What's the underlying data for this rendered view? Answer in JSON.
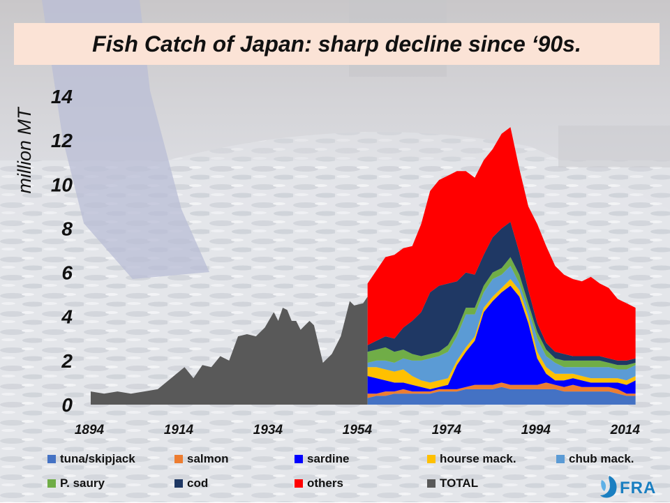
{
  "title": "Fish Catch of Japan: sharp decline since ‘90s.",
  "logo_text": "FRA",
  "chart_data": {
    "type": "area",
    "stacked": true,
    "ylabel": "million MT",
    "ylim": [
      0,
      14
    ],
    "yticks": [
      0,
      2,
      4,
      6,
      8,
      10,
      12,
      14
    ],
    "xlim": [
      1894,
      2017
    ],
    "xticks": [
      1894,
      1914,
      1934,
      1954,
      1974,
      1994,
      2014
    ],
    "grid": false,
    "legend_position": "bottom",
    "total": {
      "name": "TOTAL",
      "color": "#595959",
      "x": [
        1894,
        1897,
        1900,
        1903,
        1906,
        1909,
        1912,
        1915,
        1917,
        1919,
        1921,
        1923,
        1925,
        1927,
        1929,
        1931,
        1933,
        1935,
        1936,
        1937,
        1938,
        1939,
        1940,
        1941,
        1942,
        1943,
        1944,
        1946,
        1948,
        1950,
        1952,
        1953,
        1955,
        1956
      ],
      "values": [
        0.6,
        0.5,
        0.6,
        0.5,
        0.6,
        0.7,
        1.2,
        1.7,
        1.2,
        1.8,
        1.7,
        2.2,
        2.0,
        3.1,
        3.2,
        3.1,
        3.5,
        4.2,
        3.8,
        4.4,
        4.3,
        3.8,
        3.8,
        3.4,
        3.6,
        3.8,
        3.6,
        1.9,
        2.3,
        3.1,
        4.7,
        4.5,
        4.6,
        4.9
      ]
    },
    "years": [
      1956,
      1958,
      1960,
      1962,
      1964,
      1966,
      1968,
      1970,
      1972,
      1974,
      1976,
      1978,
      1980,
      1982,
      1984,
      1986,
      1988,
      1990,
      1992,
      1994,
      1996,
      1998,
      2000,
      2002,
      2004,
      2006,
      2008,
      2010,
      2012,
      2014,
      2016
    ],
    "series": [
      {
        "name": "tuna/skipjack",
        "color": "#4472c4",
        "values": [
          0.3,
          0.4,
          0.4,
          0.5,
          0.5,
          0.5,
          0.5,
          0.5,
          0.6,
          0.6,
          0.6,
          0.7,
          0.7,
          0.7,
          0.7,
          0.8,
          0.7,
          0.7,
          0.7,
          0.7,
          0.7,
          0.7,
          0.6,
          0.6,
          0.6,
          0.6,
          0.6,
          0.6,
          0.5,
          0.4,
          0.4
        ]
      },
      {
        "name": "salmon",
        "color": "#ed7d31",
        "values": [
          0.2,
          0.1,
          0.2,
          0.1,
          0.2,
          0.1,
          0.1,
          0.1,
          0.1,
          0.1,
          0.1,
          0.1,
          0.2,
          0.2,
          0.2,
          0.2,
          0.2,
          0.2,
          0.2,
          0.2,
          0.3,
          0.2,
          0.2,
          0.3,
          0.2,
          0.2,
          0.2,
          0.2,
          0.2,
          0.1,
          0.1
        ]
      },
      {
        "name": "sardine",
        "color": "#0000ff",
        "values": [
          0.8,
          0.7,
          0.5,
          0.4,
          0.3,
          0.3,
          0.2,
          0.1,
          0.1,
          0.2,
          1.1,
          1.6,
          2.0,
          3.3,
          3.8,
          4.1,
          4.5,
          4.0,
          2.8,
          1.2,
          0.4,
          0.2,
          0.3,
          0.3,
          0.3,
          0.2,
          0.2,
          0.2,
          0.3,
          0.4,
          0.6
        ]
      },
      {
        "name": "hourse mack.",
        "color": "#ffc000",
        "values": [
          0.4,
          0.5,
          0.5,
          0.5,
          0.6,
          0.4,
          0.3,
          0.3,
          0.3,
          0.3,
          0.2,
          0.2,
          0.2,
          0.2,
          0.2,
          0.2,
          0.3,
          0.3,
          0.3,
          0.3,
          0.3,
          0.3,
          0.3,
          0.2,
          0.2,
          0.2,
          0.2,
          0.2,
          0.2,
          0.2,
          0.2
        ]
      },
      {
        "name": "chub mack.",
        "color": "#5b9bd5",
        "values": [
          0.2,
          0.3,
          0.4,
          0.4,
          0.5,
          0.7,
          0.9,
          1.1,
          1.1,
          1.2,
          1.1,
          1.5,
          1.0,
          0.7,
          0.8,
          0.6,
          0.6,
          0.3,
          0.3,
          0.6,
          0.5,
          0.5,
          0.3,
          0.3,
          0.4,
          0.5,
          0.5,
          0.5,
          0.4,
          0.5,
          0.5
        ]
      },
      {
        "name": "P. saury",
        "color": "#70ad47",
        "values": [
          0.5,
          0.5,
          0.6,
          0.5,
          0.4,
          0.3,
          0.2,
          0.2,
          0.2,
          0.3,
          0.3,
          0.3,
          0.3,
          0.3,
          0.3,
          0.3,
          0.4,
          0.4,
          0.3,
          0.3,
          0.3,
          0.2,
          0.3,
          0.3,
          0.3,
          0.3,
          0.3,
          0.2,
          0.2,
          0.2,
          0.1
        ]
      },
      {
        "name": "cod",
        "color": "#1f3864",
        "values": [
          0.3,
          0.4,
          0.5,
          0.6,
          1.0,
          1.5,
          2.0,
          2.8,
          3.0,
          2.8,
          2.2,
          1.6,
          1.5,
          1.4,
          1.6,
          1.8,
          1.6,
          1.0,
          0.6,
          0.4,
          0.3,
          0.3,
          0.3,
          0.2,
          0.2,
          0.2,
          0.2,
          0.2,
          0.2,
          0.2,
          0.2
        ]
      },
      {
        "name": "others",
        "color": "#ff0000",
        "values": [
          2.8,
          3.2,
          3.6,
          3.8,
          3.6,
          3.4,
          4.0,
          4.6,
          4.8,
          4.9,
          5.0,
          4.6,
          4.4,
          4.3,
          4.0,
          4.3,
          4.3,
          3.8,
          3.8,
          4.5,
          4.4,
          3.9,
          3.6,
          3.5,
          3.4,
          3.6,
          3.3,
          3.2,
          2.8,
          2.6,
          2.3
        ]
      }
    ],
    "legend": [
      {
        "label": "tuna/skipjack",
        "color": "#4472c4"
      },
      {
        "label": "salmon",
        "color": "#ed7d31"
      },
      {
        "label": "sardine",
        "color": "#0000ff"
      },
      {
        "label": "hourse mack.",
        "color": "#ffc000"
      },
      {
        "label": "chub mack.",
        "color": "#5b9bd5"
      },
      {
        "label": "P. saury",
        "color": "#70ad47"
      },
      {
        "label": "cod",
        "color": "#1f3864"
      },
      {
        "label": "others",
        "color": "#ff0000"
      },
      {
        "label": "TOTAL",
        "color": "#595959"
      }
    ]
  }
}
